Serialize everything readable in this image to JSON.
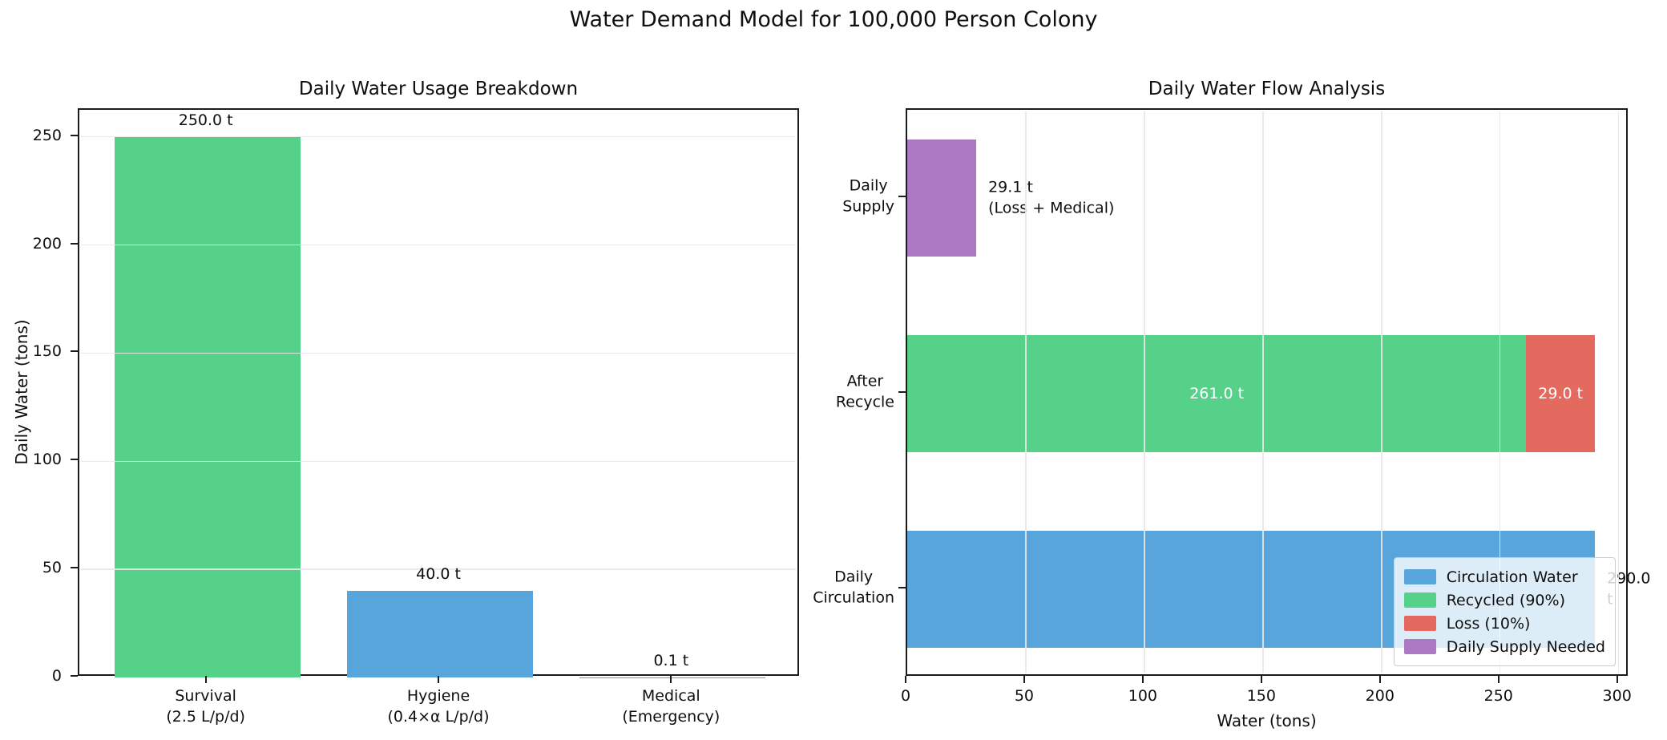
{
  "figure": {
    "suptitle": "Water Demand Model for 100,000 Person Colony",
    "background": "#ffffff"
  },
  "colors": {
    "blue": "#58a5dc",
    "green": "#56d189",
    "red": "#e4695e",
    "purple": "#ab79c3",
    "grid": "#e8e8e8",
    "spine": "#1c1c1c",
    "text": "#0f0f0f",
    "inside_label": "#ffffff"
  },
  "chart_data": [
    {
      "type": "bar",
      "title": "Daily Water Usage Breakdown",
      "xlabel": "",
      "ylabel": "Daily Water (tons)",
      "categories": [
        "Survival\n(2.5 L/p/d)",
        "Hygiene\n(0.4×α L/p/d)",
        "Medical\n(Emergency)"
      ],
      "values": [
        250.0,
        40.0,
        0.1
      ],
      "bar_labels": [
        "250.0 t",
        "40.0 t",
        "0.1 t"
      ],
      "bar_colors": [
        "green",
        "blue",
        "red"
      ],
      "yticks": [
        0,
        50,
        100,
        150,
        200,
        250
      ],
      "ylim": [
        0,
        262.5
      ],
      "grid": true,
      "legend_position": "none"
    },
    {
      "type": "barh-stacked",
      "title": "Daily Water Flow Analysis",
      "xlabel": "Water (tons)",
      "ylabel": "",
      "rows": [
        {
          "label": "Daily\nSupply",
          "segments": [
            {
              "name": "Daily Supply Needed",
              "value": 29.1,
              "color": "purple"
            }
          ],
          "annotation": "29.1 t\n(Loss + Medical)"
        },
        {
          "label": "After\nRecycle",
          "segments": [
            {
              "name": "Recycled (90%)",
              "value": 261.0,
              "color": "green",
              "inside_label": "261.0 t"
            },
            {
              "name": "Loss (10%)",
              "value": 29.0,
              "color": "red",
              "inside_label": "29.0 t"
            }
          ],
          "annotation": ""
        },
        {
          "label": "Daily\nCirculation",
          "segments": [
            {
              "name": "Circulation Water",
              "value": 290.0,
              "color": "blue"
            }
          ],
          "annotation": "290.0 t"
        }
      ],
      "xticks": [
        0,
        50,
        100,
        150,
        200,
        250,
        300
      ],
      "xlim": [
        0,
        304.5
      ],
      "ylim": [
        -0.45,
        2.45
      ],
      "grid": true,
      "legend_position": "lower right",
      "legend": [
        {
          "label": "Circulation Water",
          "color": "blue"
        },
        {
          "label": "Recycled (90%)",
          "color": "green"
        },
        {
          "label": "Loss (10%)",
          "color": "red"
        },
        {
          "label": "Daily Supply Needed",
          "color": "purple"
        }
      ]
    }
  ]
}
